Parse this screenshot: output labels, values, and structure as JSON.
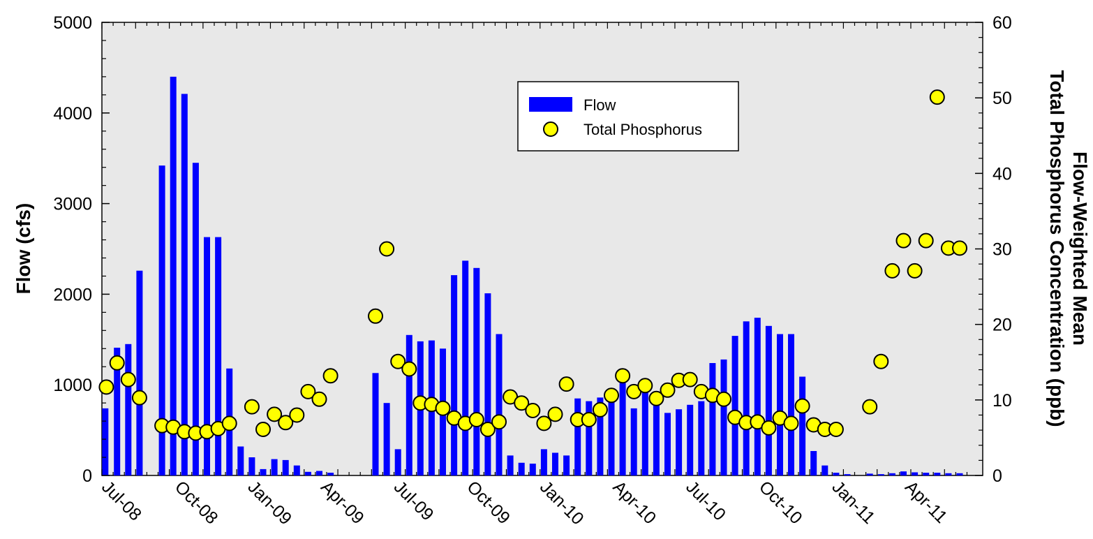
{
  "chart_data": {
    "type": "bar",
    "title": "",
    "ylabel": "Flow (cfs)",
    "y2label_line1": "Flow-Weighted Mean",
    "y2label_line2": "Total Phosphorus Concentration (ppb)",
    "ylim": [
      0,
      5000
    ],
    "y2lim": [
      0,
      60
    ],
    "yticks": [
      0,
      1000,
      2000,
      3000,
      4000,
      5000
    ],
    "y2ticks": [
      0,
      10,
      20,
      30,
      40,
      50,
      60
    ],
    "x_tick_labels": [
      "Jul-08",
      "Oct-08",
      "Jan-09",
      "Apr-09",
      "Jul-09",
      "Oct-09",
      "Jan-10",
      "Apr-10",
      "Jul-10",
      "Oct-10",
      "Jan-11",
      "Apr-11"
    ],
    "grid": false,
    "legend_position": "top-center",
    "plot_background": "#e8e8e8",
    "series": [
      {
        "name": "Flow",
        "type": "bar",
        "axis": "left",
        "color": "#0000ff",
        "points": [
          [
            0.3,
            740
          ],
          [
            1.35,
            1410
          ],
          [
            2.35,
            1450
          ],
          [
            3.35,
            2260
          ],
          [
            5.35,
            3420
          ],
          [
            6.35,
            4400
          ],
          [
            7.35,
            4210
          ],
          [
            8.35,
            3450
          ],
          [
            9.35,
            2630
          ],
          [
            10.35,
            2630
          ],
          [
            11.35,
            1180
          ],
          [
            12.35,
            320
          ],
          [
            13.35,
            200
          ],
          [
            14.35,
            70
          ],
          [
            15.35,
            180
          ],
          [
            16.35,
            170
          ],
          [
            17.35,
            110
          ],
          [
            18.35,
            40
          ],
          [
            19.35,
            50
          ],
          [
            20.35,
            30
          ],
          [
            24.35,
            1130
          ],
          [
            25.35,
            800
          ],
          [
            26.35,
            290
          ],
          [
            27.35,
            1550
          ],
          [
            28.35,
            1480
          ],
          [
            29.35,
            1490
          ],
          [
            30.35,
            1400
          ],
          [
            31.35,
            2210
          ],
          [
            32.35,
            2370
          ],
          [
            33.35,
            2290
          ],
          [
            34.35,
            2010
          ],
          [
            35.35,
            1560
          ],
          [
            36.35,
            220
          ],
          [
            37.35,
            140
          ],
          [
            38.35,
            130
          ],
          [
            39.35,
            290
          ],
          [
            40.35,
            250
          ],
          [
            41.35,
            220
          ],
          [
            42.35,
            850
          ],
          [
            43.35,
            820
          ],
          [
            44.35,
            860
          ],
          [
            45.35,
            950
          ],
          [
            46.35,
            1020
          ],
          [
            47.35,
            740
          ],
          [
            48.35,
            920
          ],
          [
            49.35,
            810
          ],
          [
            50.35,
            690
          ],
          [
            51.35,
            730
          ],
          [
            52.35,
            780
          ],
          [
            53.35,
            820
          ],
          [
            54.35,
            1240
          ],
          [
            55.35,
            1280
          ],
          [
            56.35,
            1540
          ],
          [
            57.35,
            1700
          ],
          [
            58.35,
            1740
          ],
          [
            59.35,
            1650
          ],
          [
            60.35,
            1560
          ],
          [
            61.35,
            1560
          ],
          [
            62.35,
            1090
          ],
          [
            63.35,
            270
          ],
          [
            64.35,
            110
          ],
          [
            65.35,
            30
          ],
          [
            66.35,
            15
          ],
          [
            68.35,
            20
          ],
          [
            69.35,
            15
          ],
          [
            70.35,
            25
          ],
          [
            71.35,
            45
          ],
          [
            72.35,
            35
          ],
          [
            73.35,
            30
          ],
          [
            74.35,
            30
          ],
          [
            75.35,
            25
          ],
          [
            76.35,
            25
          ]
        ]
      },
      {
        "name": "Total Phosphorus",
        "type": "scatter",
        "axis": "right",
        "color": "#ffff00",
        "points": [
          [
            0.4,
            11.7
          ],
          [
            1.35,
            14.9
          ],
          [
            2.35,
            12.7
          ],
          [
            3.35,
            10.3
          ],
          [
            5.35,
            6.6
          ],
          [
            6.35,
            6.4
          ],
          [
            7.35,
            5.8
          ],
          [
            8.35,
            5.6
          ],
          [
            9.35,
            5.8
          ],
          [
            10.35,
            6.2
          ],
          [
            11.35,
            6.9
          ],
          [
            13.35,
            9.1
          ],
          [
            14.35,
            6.1
          ],
          [
            15.35,
            8.1
          ],
          [
            16.35,
            7.0
          ],
          [
            17.35,
            8.0
          ],
          [
            18.35,
            11.1
          ],
          [
            19.35,
            10.1
          ],
          [
            20.35,
            13.2
          ],
          [
            24.35,
            21.1
          ],
          [
            25.35,
            30.0
          ],
          [
            26.35,
            15.1
          ],
          [
            27.35,
            14.1
          ],
          [
            28.35,
            9.6
          ],
          [
            29.35,
            9.4
          ],
          [
            30.35,
            8.9
          ],
          [
            31.35,
            7.6
          ],
          [
            32.35,
            6.9
          ],
          [
            33.35,
            7.4
          ],
          [
            34.35,
            6.1
          ],
          [
            35.35,
            7.1
          ],
          [
            36.35,
            10.4
          ],
          [
            37.35,
            9.6
          ],
          [
            38.35,
            8.6
          ],
          [
            39.35,
            6.9
          ],
          [
            40.35,
            8.1
          ],
          [
            41.35,
            12.1
          ],
          [
            42.35,
            7.4
          ],
          [
            43.35,
            7.4
          ],
          [
            44.35,
            8.7
          ],
          [
            45.35,
            10.6
          ],
          [
            46.35,
            13.2
          ],
          [
            47.35,
            11.1
          ],
          [
            48.35,
            11.9
          ],
          [
            49.35,
            10.2
          ],
          [
            50.35,
            11.3
          ],
          [
            51.35,
            12.6
          ],
          [
            52.35,
            12.7
          ],
          [
            53.35,
            11.1
          ],
          [
            54.35,
            10.6
          ],
          [
            55.35,
            10.1
          ],
          [
            56.35,
            7.7
          ],
          [
            57.35,
            7.0
          ],
          [
            58.35,
            7.1
          ],
          [
            59.35,
            6.3
          ],
          [
            60.35,
            7.6
          ],
          [
            61.35,
            6.9
          ],
          [
            62.35,
            9.2
          ],
          [
            63.35,
            6.7
          ],
          [
            64.35,
            6.1
          ],
          [
            65.35,
            6.1
          ],
          [
            68.35,
            9.1
          ],
          [
            69.35,
            15.1
          ],
          [
            70.35,
            27.1
          ],
          [
            71.35,
            31.1
          ],
          [
            72.35,
            27.1
          ],
          [
            73.35,
            31.1
          ],
          [
            74.35,
            50.1
          ],
          [
            75.35,
            30.1
          ],
          [
            76.35,
            30.1
          ]
        ]
      }
    ]
  },
  "legend": {
    "items": [
      {
        "label": "Flow",
        "color": "#0000ff",
        "marker": "bar"
      },
      {
        "label": "Total Phosphorus",
        "color": "#ffff00",
        "marker": "circle"
      }
    ]
  }
}
